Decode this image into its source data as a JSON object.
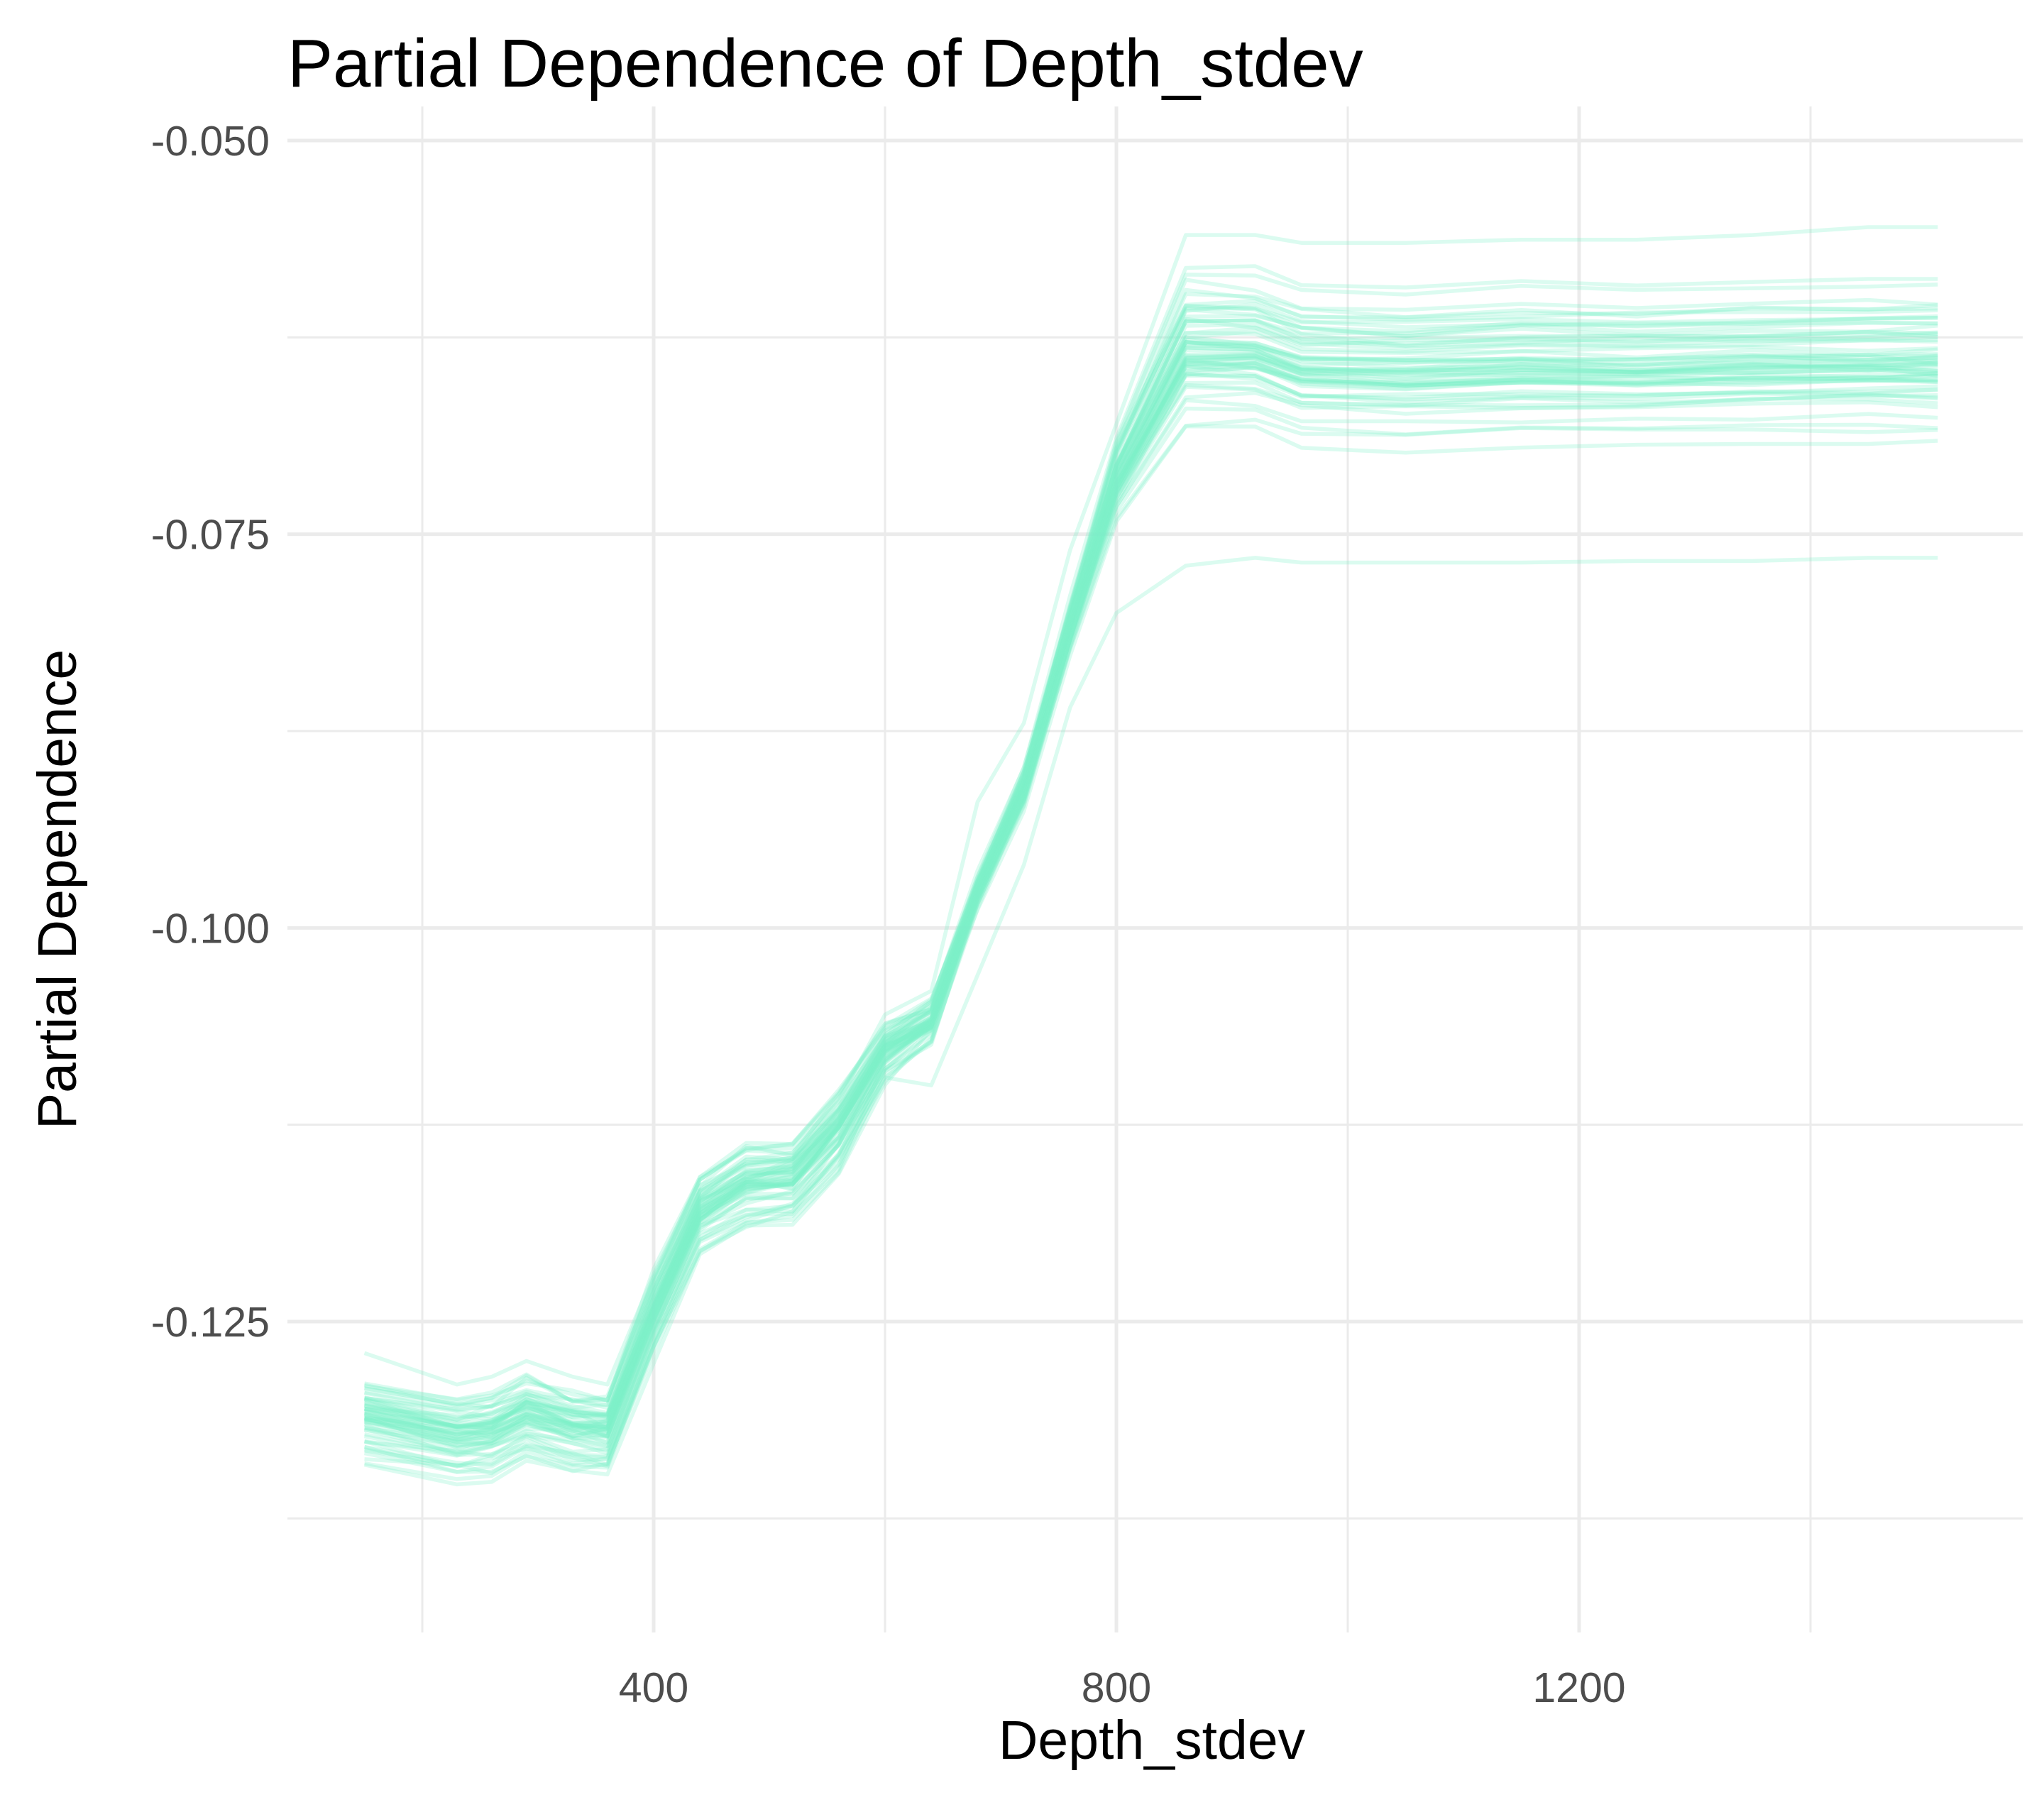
{
  "chart_data": {
    "type": "line",
    "title": "Partial Dependence of Depth_stdev",
    "xlabel": "Depth_stdev",
    "ylabel": "Partial Dependence",
    "xlim": [
      105,
      1580
    ],
    "ylim": [
      -0.1365,
      -0.0485
    ],
    "x_ticks": [
      400,
      800,
      1200
    ],
    "x_tick_labels": [
      "400",
      "800",
      "1200"
    ],
    "x_minor_ticks": [
      200,
      600,
      1000,
      1400
    ],
    "y_ticks": [
      -0.05,
      -0.075,
      -0.1,
      -0.125
    ],
    "y_tick_labels": [
      "-0.050",
      "-0.075",
      "-0.100",
      "-0.125"
    ],
    "y_minor_ticks": [
      -0.0625,
      -0.0875,
      -0.1125,
      -0.1375
    ],
    "grid": true,
    "legend": "none",
    "line_color": "#7ff0c8",
    "line_opacity": 0.28,
    "n_lines": 60,
    "x": [
      150,
      230,
      260,
      290,
      330,
      360,
      400,
      440,
      480,
      520,
      560,
      600,
      640,
      680,
      720,
      760,
      800,
      860,
      920,
      960,
      1050,
      1150,
      1250,
      1350,
      1450,
      1510
    ],
    "mean_curve": [
      -0.1314,
      -0.1325,
      -0.1323,
      -0.1312,
      -0.132,
      -0.1322,
      -0.1247,
      -0.1183,
      -0.1165,
      -0.1162,
      -0.113,
      -0.108,
      -0.106,
      -0.0978,
      -0.0912,
      -0.081,
      -0.0715,
      -0.0632,
      -0.0632,
      -0.0643,
      -0.0645,
      -0.0642,
      -0.0643,
      -0.0641,
      -0.064,
      -0.064
    ],
    "lower_envelope_example": [
      -0.134,
      -0.135,
      -0.1348,
      -0.1335,
      -0.1345,
      -0.134,
      -0.127,
      -0.1205,
      -0.119,
      -0.118,
      -0.1145,
      -0.1095,
      -0.11,
      -0.103,
      -0.096,
      -0.086,
      -0.08,
      -0.077,
      -0.0765,
      -0.0768,
      -0.0768,
      -0.0768,
      -0.0767,
      -0.0767,
      -0.0765,
      -0.0765
    ],
    "upper_envelope_example": [
      -0.127,
      -0.129,
      -0.1285,
      -0.1275,
      -0.1285,
      -0.129,
      -0.122,
      -0.116,
      -0.114,
      -0.114,
      -0.111,
      -0.1055,
      -0.104,
      -0.092,
      -0.087,
      -0.076,
      -0.068,
      -0.056,
      -0.056,
      -0.0565,
      -0.0565,
      -0.0563,
      -0.0563,
      -0.056,
      -0.0555,
      -0.0555
    ]
  }
}
